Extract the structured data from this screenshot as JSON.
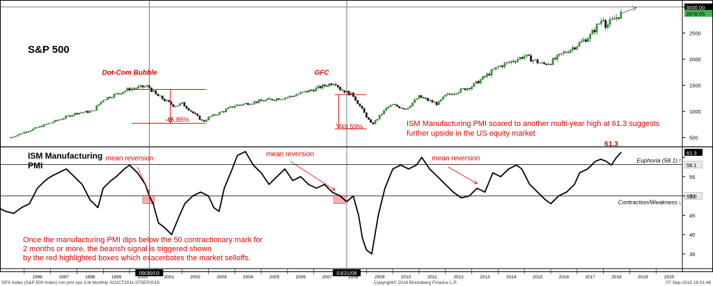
{
  "chart_data": [
    {
      "type": "candlestick",
      "title": "S&P 500",
      "ylim": [
        400,
        3000
      ],
      "y_ticks": [
        500,
        1000,
        1500,
        2000,
        2500,
        3000
      ],
      "y_tick_labels": [
        "500",
        "1000",
        "1500",
        "2000",
        "2500",
        "3000.00"
      ],
      "last_value_label": "2878.05",
      "x_ticks": [
        1996,
        1997,
        1998,
        1999,
        2000,
        2001,
        2002,
        2003,
        2004,
        2005,
        2006,
        2007,
        2008,
        2009,
        2010,
        2011,
        2012,
        2013,
        2014,
        2015,
        2016,
        2017,
        2018,
        2019,
        2020
      ],
      "series": [
        {
          "x": [
            1995.5,
            1996,
            1997,
            1998,
            1998.6,
            1999,
            2000,
            2000.7,
            2001,
            2001.7,
            2002,
            2002.8,
            2003,
            2003.5,
            2004,
            2005,
            2006,
            2007,
            2007.8,
            2008,
            2008.5,
            2009.2,
            2009.8,
            2010,
            2010.5,
            2011,
            2011.7,
            2012,
            2013,
            2014,
            2015,
            2015.7,
            2016,
            2016.5,
            2017,
            2017.5,
            2018,
            2018.1,
            2018.68
          ],
          "values": [
            500,
            600,
            780,
            970,
            1000,
            1230,
            1430,
            1480,
            1320,
            1100,
            1150,
            800,
            880,
            990,
            1110,
            1200,
            1270,
            1420,
            1560,
            1430,
            1300,
            740,
            1080,
            1120,
            1050,
            1280,
            1140,
            1300,
            1480,
            1850,
            2060,
            1900,
            1940,
            2120,
            2270,
            2450,
            2800,
            2640,
            2878
          ]
        }
      ],
      "annotations": [
        {
          "text": "Dot-Com Bubble",
          "x": 2000.0,
          "y": 1700
        },
        {
          "text": "GFC",
          "x": 2007.3,
          "y": 1700
        },
        {
          "text": "-45.85%",
          "x": 2001.8,
          "y": 800
        },
        {
          "text": "-49.59%",
          "x": 2008.4,
          "y": 670
        }
      ],
      "drawdowns": [
        {
          "label": "-45.85%",
          "x_start": 2000.1,
          "x_end": 2002.9,
          "y_high": 1420,
          "y_low": 770
        },
        {
          "label": "-49.59%",
          "x_start": 2007.8,
          "x_end": 2009.0,
          "y_high": 1320,
          "y_low": 665
        }
      ],
      "note": "ISM Manufacturing PMI soared to another multi-year high at 61.3 suggests further upside in the US equity market"
    },
    {
      "type": "line",
      "title": "ISM Manufacturing PMI",
      "ylim": [
        33,
        62
      ],
      "y_ticks": [
        35,
        40,
        45,
        50,
        55,
        60
      ],
      "x_ticks": [
        1996,
        1997,
        1998,
        1999,
        2000,
        2001,
        2002,
        2003,
        2004,
        2005,
        2006,
        2007,
        2008,
        2009,
        2010,
        2011,
        2012,
        2013,
        2014,
        2015,
        2016,
        2017,
        2018,
        2019,
        2020
      ],
      "x_tick_labels": [
        "1996",
        "1997",
        "1998",
        "1999",
        "2000",
        "2001",
        "2002",
        "2003",
        "2004",
        "2005",
        "2006",
        "2007",
        "2008",
        "2009",
        "2010",
        "2011",
        "2012",
        "2013",
        "2014",
        "2015",
        "2016",
        "2017",
        "2018",
        "2019",
        "2020"
      ],
      "series": [
        {
          "x": [
            1995.0,
            1995.3,
            1995.6,
            1995.9,
            1996.2,
            1996.5,
            1996.8,
            1997.0,
            1997.3,
            1997.6,
            1997.9,
            1998.2,
            1998.5,
            1998.8,
            1999.0,
            1999.3,
            1999.5,
            1999.8,
            2000.0,
            2000.3,
            2000.6,
            2000.75,
            2000.9,
            2001.1,
            2001.3,
            2001.6,
            2001.9,
            2002.1,
            2002.4,
            2002.7,
            2003.0,
            2003.2,
            2003.4,
            2003.6,
            2003.9,
            2004.1,
            2004.4,
            2004.7,
            2005.0,
            2005.3,
            2005.6,
            2005.9,
            2006.2,
            2006.5,
            2006.8,
            2007.1,
            2007.4,
            2007.7,
            2008.0,
            2008.25,
            2008.5,
            2008.7,
            2008.85,
            2009.0,
            2009.2,
            2009.45,
            2009.7,
            2010.0,
            2010.3,
            2010.6,
            2010.9,
            2011.1,
            2011.4,
            2011.7,
            2012.0,
            2012.3,
            2012.6,
            2012.9,
            2013.2,
            2013.5,
            2013.8,
            2014.1,
            2014.4,
            2014.7,
            2014.9,
            2015.2,
            2015.5,
            2015.8,
            2016.0,
            2016.3,
            2016.6,
            2016.9,
            2017.1,
            2017.4,
            2017.7,
            2017.9,
            2018.1,
            2018.3,
            2018.5,
            2018.68
          ],
          "values": [
            47,
            46,
            45.5,
            47,
            48,
            52,
            54,
            55,
            56,
            57,
            55,
            53,
            49,
            47,
            52,
            54,
            55,
            57,
            58,
            56,
            53,
            50,
            48,
            43,
            42,
            40,
            45,
            48,
            50,
            51,
            50,
            47,
            46,
            52,
            57,
            60.5,
            61.5,
            58,
            56,
            53,
            55,
            57,
            54,
            55,
            53,
            52,
            53,
            51,
            50,
            48.5,
            50,
            45,
            39,
            36,
            35,
            45,
            52,
            57,
            58,
            57,
            58,
            60,
            57,
            55,
            53,
            51,
            49.5,
            50,
            52,
            51,
            56,
            55,
            57,
            58,
            57,
            53,
            51,
            49,
            48,
            50,
            51,
            53,
            56,
            57,
            59,
            59.5,
            59,
            58,
            60,
            61.3
          ]
        }
      ],
      "reference_lines": [
        {
          "label": "Euphoria (58.1)",
          "value": 58.1,
          "tag": "58.1"
        },
        {
          "label": "Contraction/Weakness",
          "value": 50,
          "tag": "50.0"
        }
      ],
      "last_value_tag": "61.3",
      "peak_label": "61.3",
      "highlights": [
        {
          "x_start": 2000.5,
          "x_end": 2000.95,
          "y_low": 48,
          "y_high": 50.2
        },
        {
          "x_start": 2007.75,
          "x_end": 2008.2,
          "y_low": 48,
          "y_high": 50.2
        }
      ],
      "annotations": [
        {
          "text": "mean reversion",
          "x": 2000.0,
          "y": 59.2
        },
        {
          "text": "mean reversion",
          "x": 2006.1,
          "y": 60.3
        },
        {
          "text": "mean reversion",
          "x": 2012.4,
          "y": 59.2
        }
      ],
      "note": "Once the manufacturing PMI dips below the 50 contractionary mark for 2 months or more, the bearish signal is triggered shown by the red highlighted boxes which exacerbates the market selloffs.",
      "date_markers": [
        {
          "label": "09/30/00",
          "x": 2000.75
        },
        {
          "label": "03/31/08",
          "x": 2008.25
        }
      ]
    }
  ],
  "footer": {
    "left": "SPX Index (S&P 500 Index) ism pmi spx 3 bt  Monthly 31OCT2011-07SEP2018",
    "center": "Copyright© 2018 Bloomberg Finance L.P.",
    "right": "07-Sep-2018 18:01:46"
  },
  "colors": {
    "accent": "#e00000",
    "line": "#000000",
    "up": "#2e9a2e",
    "down": "#111111",
    "highlight": "#f08c8c",
    "grid": "#808080"
  }
}
